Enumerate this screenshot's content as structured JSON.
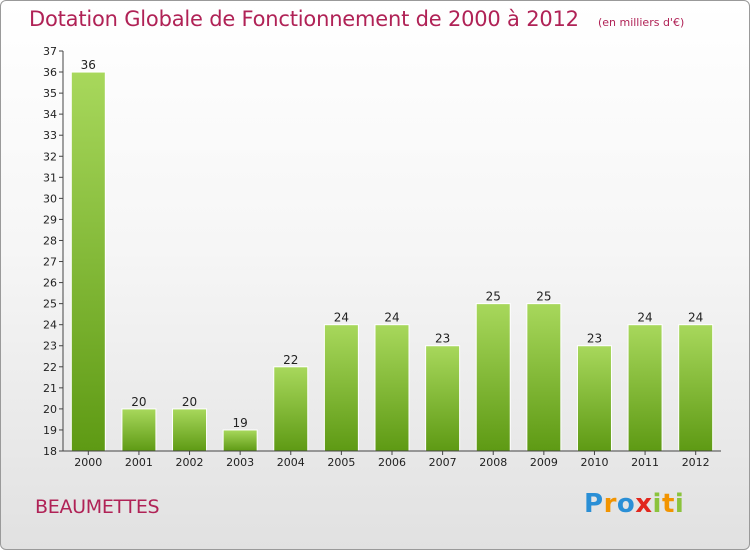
{
  "header": {
    "title": "Dotation Globale de Fonctionnement de 2000 à 2012",
    "subtitle": "(en milliers d'€)"
  },
  "entity_name": "BEAUMETTES",
  "logo": {
    "text": "Proxiti",
    "letters": [
      "P",
      "r",
      "o",
      "x",
      "i",
      "t",
      "i"
    ],
    "colors": [
      "#2a8fd6",
      "#f29400",
      "#2a8fd6",
      "#e2271d",
      "#8bc33c",
      "#f29400",
      "#8bc33c"
    ]
  },
  "colors": {
    "title": "#b02256",
    "bar_light": "#a8d85c",
    "bar_dark": "#5e9a14",
    "grid": "#d8d8d8"
  },
  "chart_data": {
    "type": "bar",
    "title": "Dotation Globale de Fonctionnement de 2000 à 2012",
    "subtitle": "(en milliers d'€)",
    "categories": [
      "2000",
      "2001",
      "2002",
      "2003",
      "2004",
      "2005",
      "2006",
      "2007",
      "2008",
      "2009",
      "2010",
      "2011",
      "2012"
    ],
    "values": [
      36,
      20,
      20,
      19,
      22,
      24,
      24,
      23,
      25,
      25,
      23,
      24,
      24
    ],
    "value_labels": [
      "36",
      "20",
      "20",
      "19",
      "22",
      "24",
      "24",
      "23",
      "25",
      "25",
      "23",
      "24",
      "24"
    ],
    "ylim": [
      18,
      37
    ],
    "yticks": [
      "18",
      "19",
      "20",
      "21",
      "22",
      "23",
      "24",
      "25",
      "26",
      "27",
      "28",
      "29",
      "30",
      "31",
      "32",
      "33",
      "34",
      "35",
      "36",
      "37"
    ],
    "grid": false,
    "xlabel": "",
    "ylabel": ""
  }
}
